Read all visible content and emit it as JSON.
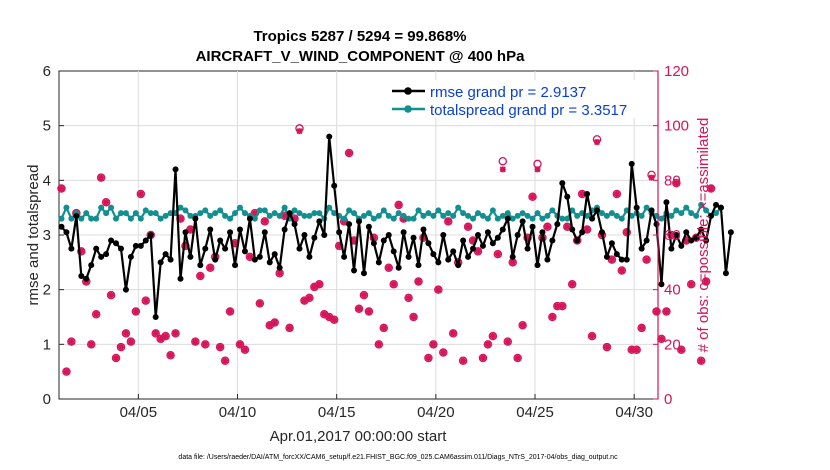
{
  "colors": {
    "rmse": "#000000",
    "spread": "#138f8f",
    "obs": "#d6145a",
    "legend_rmse_text": "#0a3fd6",
    "legend_spread_text": "#0a3fd6"
  },
  "chart_data": {
    "type": "line",
    "title_line1": "Tropics 5287 / 5294 = 99.868%",
    "title_line2": "AIRCRAFT_V_WIND_COMPONENT @ 400 hPa",
    "xlabel": "Apr.01,2017 00:00:00 start",
    "ylabel_left": "rmse and totalspread",
    "ylabel_right": "# of obs: o=possible; ×=assimilated",
    "footer": "data file: /Users/raeder/DAI/ATM_forcXX/CAM6_setup/f.e21.FHIST_BGC.f09_025.CAM6assim.011/Diags_NTrS_2017-04/obs_diag_output.nc",
    "xlim": [
      1,
      31.2
    ],
    "ylim_left": [
      0,
      6
    ],
    "ylim_right": [
      0,
      120
    ],
    "x_ticks": [
      5,
      10,
      15,
      20,
      25,
      30
    ],
    "x_tick_labels": [
      "04/05",
      "04/10",
      "04/15",
      "04/20",
      "04/25",
      "04/30"
    ],
    "y_left_ticks": [
      "0",
      "1",
      "2",
      "3",
      "4",
      "5",
      "6"
    ],
    "y_right_ticks": [
      "0",
      "20",
      "40",
      "60",
      "80",
      "100",
      "120"
    ],
    "x_step_days": 0.25,
    "x_start": 1.125,
    "legend": [
      {
        "name": "rmse grand pr = 2.9137"
      },
      {
        "name": "totalspread grand pr = 3.3517"
      }
    ],
    "series": [
      {
        "name": "rmse",
        "axis": "left",
        "values": [
          3.15,
          3.05,
          2.75,
          3.35,
          2.25,
          2.2,
          2.45,
          2.75,
          2.6,
          2.65,
          2.9,
          2.85,
          2.75,
          2.0,
          2.6,
          2.8,
          2.8,
          2.9,
          3.0,
          1.5,
          2.5,
          2.65,
          2.55,
          4.2,
          2.2,
          3.05,
          2.6,
          3.3,
          2.45,
          2.75,
          3.1,
          2.55,
          2.9,
          2.75,
          3.05,
          2.45,
          3.1,
          2.7,
          3.3,
          2.55,
          2.6,
          3.05,
          2.5,
          2.65,
          2.4,
          3.1,
          3.4,
          3.2,
          2.75,
          3.0,
          2.6,
          2.95,
          3.25,
          3.0,
          4.8,
          3.9,
          3.05,
          2.6,
          3.2,
          2.35,
          3.25,
          2.3,
          3.15,
          2.85,
          2.5,
          2.9,
          3.0,
          2.7,
          2.4,
          3.05,
          2.6,
          2.95,
          2.45,
          3.1,
          2.85,
          2.65,
          2.5,
          3.0,
          2.55,
          2.7,
          2.45,
          2.9,
          2.6,
          2.75,
          3.0,
          2.8,
          3.05,
          2.85,
          2.95,
          3.1,
          3.3,
          2.6,
          3.0,
          3.25,
          2.75,
          3.15,
          2.45,
          3.05,
          2.55,
          2.9,
          3.2,
          3.95,
          3.7,
          3.1,
          2.9,
          3.05,
          3.75,
          3.3,
          3.45,
          3.05,
          2.6,
          2.85,
          2.65,
          2.55,
          2.55,
          4.3,
          3.5,
          2.75,
          2.9,
          3.45,
          3.2,
          2.1,
          3.6,
          2.75,
          3.0,
          2.8,
          3.05,
          2.9,
          2.95,
          3.1,
          2.9,
          3.35,
          3.55,
          3.5,
          2.3,
          3.05
        ]
      },
      {
        "name": "totalspread",
        "axis": "left",
        "values": [
          3.3,
          3.5,
          3.3,
          3.4,
          3.3,
          3.4,
          3.3,
          3.3,
          3.5,
          3.4,
          3.5,
          3.3,
          3.4,
          3.4,
          3.3,
          3.4,
          3.3,
          3.45,
          3.4,
          3.4,
          3.3,
          3.35,
          3.4,
          3.4,
          3.5,
          3.45,
          3.35,
          3.35,
          3.4,
          3.45,
          3.35,
          3.4,
          3.45,
          3.35,
          3.3,
          3.4,
          3.5,
          3.4,
          3.35,
          3.3,
          3.45,
          3.45,
          3.35,
          3.4,
          3.35,
          3.5,
          3.3,
          3.45,
          3.4,
          3.35,
          3.35,
          3.4,
          3.4,
          3.3,
          3.5,
          3.4,
          3.35,
          3.3,
          3.45,
          3.4,
          3.3,
          3.35,
          3.4,
          3.3,
          3.35,
          3.45,
          3.35,
          3.3,
          3.4,
          3.35,
          3.3,
          3.3,
          3.45,
          3.35,
          3.4,
          3.35,
          3.45,
          3.35,
          3.4,
          3.35,
          3.5,
          3.4,
          3.35,
          3.3,
          3.4,
          3.35,
          3.3,
          3.45,
          3.3,
          3.35,
          3.4,
          3.3,
          3.35,
          3.4,
          3.35,
          3.3,
          3.4,
          3.3,
          3.35,
          3.45,
          3.35,
          3.3,
          3.3,
          3.45,
          3.35,
          3.4,
          3.35,
          3.45,
          3.5,
          3.4,
          3.35,
          3.4,
          3.35,
          3.3,
          3.45,
          3.35,
          3.4,
          3.35,
          3.5,
          3.4,
          3.35,
          3.3,
          3.4,
          3.35,
          3.45,
          3.4,
          3.5,
          3.4,
          3.35,
          3.55,
          3.45,
          3.35,
          3.4,
          3.5
        ]
      },
      {
        "name": "obs_possible",
        "axis": "right",
        "values": [
          77,
          10,
          21,
          68,
          54,
          43,
          20,
          31,
          81,
          72,
          38,
          15,
          19,
          24,
          21,
          32,
          75,
          36,
          60,
          24,
          22,
          23,
          16,
          24,
          66,
          56,
          62,
          21,
          45,
          20,
          48,
          52,
          19,
          14,
          32,
          57,
          20,
          18,
          52,
          68,
          35,
          65,
          27,
          28,
          46,
          67,
          26,
          66,
          99,
          36,
          37,
          41,
          42,
          31,
          30,
          29,
          56,
          65,
          90,
          58,
          33,
          38,
          32,
          59,
          20,
          26,
          48,
          42,
          71,
          66,
          37,
          30,
          43,
          59,
          15,
          20,
          40,
          17,
          65,
          24,
          50,
          14,
          63,
          58,
          54,
          15,
          20,
          23,
          53,
          87,
          21,
          50,
          15,
          27,
          59,
          74,
          86,
          59,
          63,
          30,
          34,
          34,
          63,
          42,
          58,
          75,
          62,
          23,
          95,
          60,
          19,
          51,
          75,
          47,
          61,
          18,
          18,
          26,
          51,
          82,
          32,
          22,
          32,
          60,
          79,
          18,
          58,
          42,
          59,
          14,
          43,
          77
        ]
      },
      {
        "name": "obs_assimilated",
        "axis": "right",
        "values": [
          77,
          10,
          21,
          68,
          54,
          43,
          20,
          31,
          81,
          72,
          38,
          15,
          19,
          24,
          21,
          32,
          75,
          36,
          60,
          24,
          22,
          23,
          16,
          24,
          66,
          56,
          62,
          21,
          45,
          20,
          48,
          52,
          19,
          14,
          32,
          57,
          20,
          18,
          52,
          68,
          35,
          65,
          27,
          28,
          46,
          67,
          26,
          66,
          98,
          36,
          37,
          41,
          42,
          31,
          30,
          29,
          56,
          65,
          90,
          58,
          33,
          38,
          32,
          59,
          20,
          26,
          48,
          42,
          71,
          66,
          37,
          30,
          43,
          59,
          15,
          20,
          40,
          17,
          65,
          24,
          50,
          14,
          63,
          58,
          54,
          15,
          20,
          23,
          53,
          84,
          21,
          50,
          15,
          27,
          59,
          74,
          84,
          59,
          63,
          30,
          34,
          34,
          63,
          42,
          58,
          75,
          62,
          23,
          94,
          60,
          19,
          51,
          75,
          47,
          61,
          18,
          18,
          26,
          51,
          81,
          32,
          22,
          32,
          60,
          79,
          18,
          58,
          42,
          59,
          14,
          43,
          77
        ]
      }
    ]
  }
}
